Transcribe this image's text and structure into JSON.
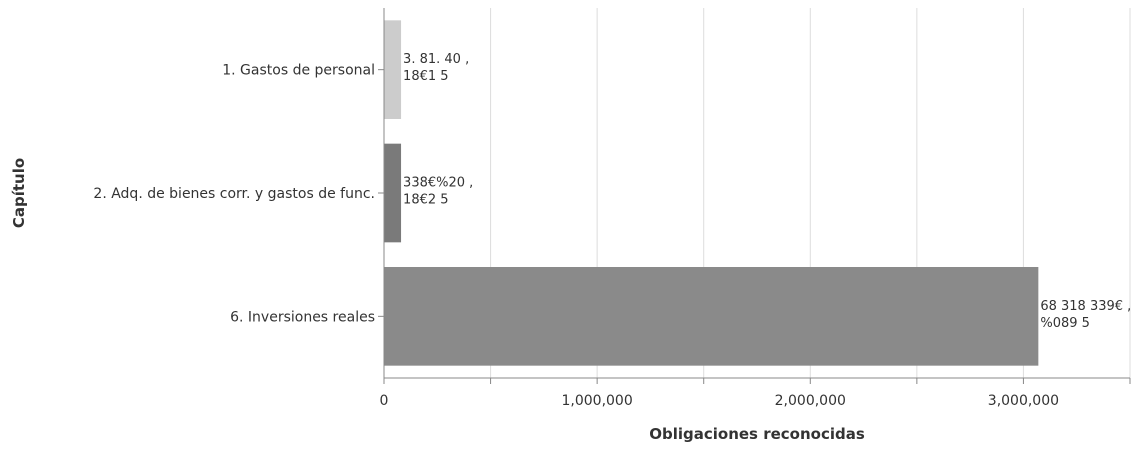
{
  "chart_data": {
    "type": "bar",
    "orientation": "horizontal",
    "categories": [
      "1. Gastos de personal",
      "2. Adq. de bienes corr. y gastos de func.",
      "6. Inversiones reales"
    ],
    "values": [
      80000,
      80000,
      3070000
    ],
    "colors": [
      "#cccccc",
      "#7a7a7a",
      "#8a8a8a"
    ],
    "data_labels": [
      [
        "3. 81. 40 ,",
        "18€1 5"
      ],
      [
        "338€%20 ,",
        "18€2 5"
      ],
      [
        "68 318 339€ ,",
        "%089 5"
      ]
    ],
    "xlabel": "Obligaciones reconocidas",
    "ylabel": "Capítulo",
    "xlim": [
      0,
      3500000
    ],
    "x_ticks": [
      0,
      1000000,
      2000000,
      3000000
    ],
    "x_tick_labels": [
      "0",
      "1,000,000",
      "2,000,000",
      "3,000,000"
    ],
    "x_minor_ticks": [
      500000,
      1500000,
      2500000,
      3500000
    ],
    "grid": true
  }
}
